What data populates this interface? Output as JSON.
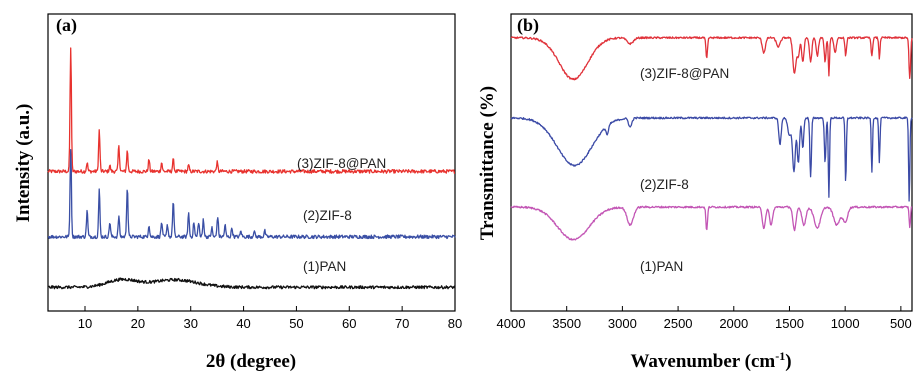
{
  "chart_data": [
    {
      "type": "line",
      "panel_label": "(a)",
      "xlabel": "2θ (degree)",
      "ylabel": "Intensity (a.u.)",
      "xlim": [
        3,
        80
      ],
      "ylim": [
        0,
        100
      ],
      "xticks": [
        10,
        20,
        30,
        40,
        50,
        60,
        70,
        80
      ],
      "y_ticks_shown": false,
      "grid": false,
      "series": [
        {
          "name": "(3)ZIF-8@PAN",
          "color": "#e8322e",
          "baseline": 47,
          "noise": 0.6,
          "peaks": [
            [
              7.3,
              42
            ],
            [
              10.4,
              3
            ],
            [
              12.7,
              14
            ],
            [
              14.7,
              2
            ],
            [
              16.4,
              9
            ],
            [
              18.0,
              7
            ],
            [
              22.1,
              4
            ],
            [
              24.5,
              3
            ],
            [
              26.7,
              4
            ],
            [
              29.6,
              2
            ],
            [
              35.0,
              3
            ]
          ]
        },
        {
          "name": "(2)ZIF-8",
          "color": "#3a4fa5",
          "baseline": 25,
          "noise": 0.6,
          "peaks": [
            [
              7.3,
              30
            ],
            [
              10.4,
              9
            ],
            [
              12.7,
              16
            ],
            [
              14.7,
              5
            ],
            [
              16.4,
              7
            ],
            [
              18.0,
              17
            ],
            [
              22.1,
              4
            ],
            [
              24.5,
              5
            ],
            [
              25.6,
              4
            ],
            [
              26.7,
              12
            ],
            [
              29.6,
              8
            ],
            [
              30.6,
              5
            ],
            [
              31.5,
              5
            ],
            [
              32.4,
              6
            ],
            [
              34.0,
              3
            ],
            [
              35.1,
              7
            ],
            [
              36.5,
              4
            ],
            [
              37.8,
              3
            ],
            [
              39.5,
              2
            ],
            [
              42.0,
              2
            ],
            [
              44.0,
              2
            ]
          ]
        },
        {
          "name": "(1)PAN",
          "color": "#111111",
          "baseline": 8,
          "noise": 0.5,
          "humps": [
            [
              17,
              2.5,
              4
            ],
            [
              27,
              2.5,
              6
            ]
          ]
        }
      ],
      "annotations": [
        "(3)ZIF-8@PAN",
        "(2)ZIF-8",
        "(1)PAN"
      ]
    },
    {
      "type": "line",
      "panel_label": "(b)",
      "xlabel": "Wavenumber (cm",
      "xlabel_sup": "-1",
      "xlabel_close": ")",
      "ylabel": "Transmittance (%)",
      "xlim": [
        4000,
        400
      ],
      "ylim": [
        0,
        100
      ],
      "xticks": [
        4000,
        3500,
        3000,
        2500,
        2000,
        1500,
        1000,
        500
      ],
      "y_ticks_shown": false,
      "grid": false,
      "series": [
        {
          "name": "(3)ZIF-8@PAN",
          "color": "#e0323a",
          "baseline": 92,
          "noise": 0.3,
          "dips": [
            [
              3440,
              180,
              14
            ],
            [
              2930,
              40,
              2
            ],
            [
              2243,
              10,
              7
            ],
            [
              1730,
              20,
              5
            ],
            [
              1600,
              25,
              3
            ],
            [
              1455,
              20,
              12
            ],
            [
              1420,
              15,
              6
            ],
            [
              1380,
              15,
              8
            ],
            [
              1310,
              15,
              8
            ],
            [
              1250,
              15,
              6
            ],
            [
              1180,
              12,
              8
            ],
            [
              1146,
              8,
              13
            ],
            [
              1090,
              15,
              5
            ],
            [
              995,
              10,
              6
            ],
            [
              760,
              10,
              6
            ],
            [
              693,
              8,
              7
            ],
            [
              420,
              10,
              14
            ]
          ]
        },
        {
          "name": "(2)ZIF-8",
          "color": "#3b4aa6",
          "baseline": 65,
          "noise": 0.3,
          "dips": [
            [
              3430,
              220,
              16
            ],
            [
              3135,
              15,
              3
            ],
            [
              2930,
              20,
              3
            ],
            [
              1585,
              15,
              9
            ],
            [
              1500,
              20,
              6
            ],
            [
              1460,
              18,
              18
            ],
            [
              1420,
              15,
              15
            ],
            [
              1380,
              12,
              10
            ],
            [
              1310,
              10,
              20
            ],
            [
              1180,
              10,
              15
            ],
            [
              1146,
              8,
              27
            ],
            [
              995,
              8,
              22
            ],
            [
              760,
              8,
              18
            ],
            [
              693,
              8,
              15
            ],
            [
              425,
              8,
              28
            ]
          ]
        },
        {
          "name": "(1)PAN",
          "color": "#c356b5",
          "baseline": 35,
          "noise": 0.3,
          "dips": [
            [
              3440,
              200,
              11
            ],
            [
              2930,
              40,
              6
            ],
            [
              2243,
              10,
              8
            ],
            [
              1730,
              20,
              7
            ],
            [
              1665,
              20,
              6
            ],
            [
              1455,
              20,
              8
            ],
            [
              1370,
              25,
              6
            ],
            [
              1250,
              40,
              7
            ],
            [
              1075,
              40,
              6
            ],
            [
              1000,
              30,
              5
            ],
            [
              420,
              8,
              7
            ]
          ]
        }
      ],
      "annotations": [
        "(3)ZIF-8@PAN",
        "(2)ZIF-8",
        "(1)PAN"
      ]
    }
  ]
}
